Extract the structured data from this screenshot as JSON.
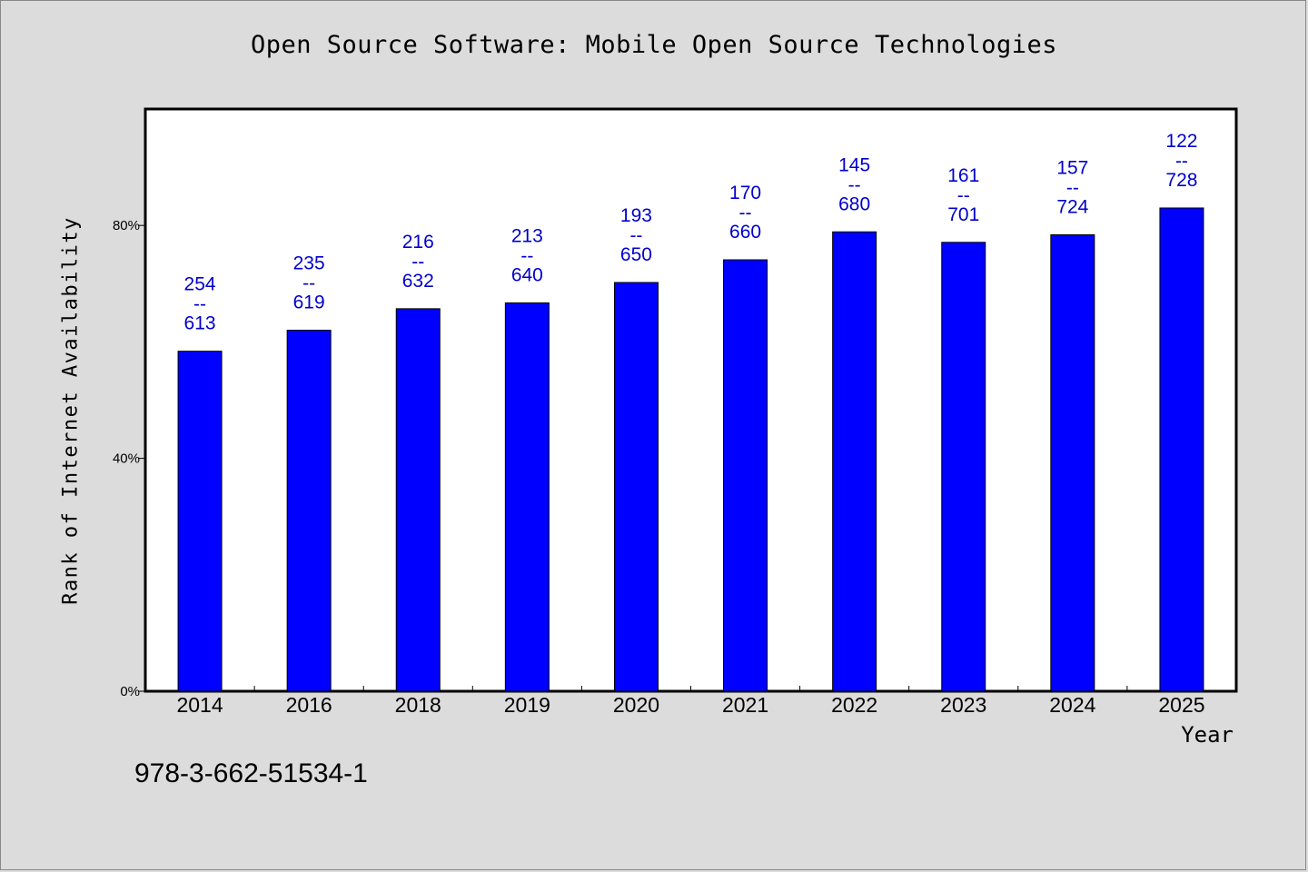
{
  "title": "Open Source Software: Mobile Open Source Technologies",
  "footer_text": "978-3-662-51534-1",
  "colors": {
    "background": "#dcdcdc",
    "plot_area": "#ffffff",
    "bar": "#0000ff",
    "label": "#0000cc"
  },
  "chart_data": {
    "type": "bar",
    "title": "Open Source Software: Mobile Open Source Technologies",
    "xlabel": "Year",
    "ylabel": "Rank of Internet Availability",
    "categories": [
      "2014",
      "2016",
      "2018",
      "2019",
      "2020",
      "2021",
      "2022",
      "2023",
      "2024",
      "2025"
    ],
    "series": [
      {
        "values": [
          58.4,
          62.0,
          65.7,
          66.7,
          70.2,
          74.1,
          78.9,
          77.1,
          78.4,
          83.0
        ]
      }
    ],
    "data_labels": [
      {
        "top": "254",
        "sep": "--",
        "bottom": "613"
      },
      {
        "top": "235",
        "sep": "--",
        "bottom": "619"
      },
      {
        "top": "216",
        "sep": "--",
        "bottom": "632"
      },
      {
        "top": "213",
        "sep": "--",
        "bottom": "640"
      },
      {
        "top": "193",
        "sep": "--",
        "bottom": "650"
      },
      {
        "top": "170",
        "sep": "--",
        "bottom": "660"
      },
      {
        "top": "145",
        "sep": "--",
        "bottom": "680"
      },
      {
        "top": "161",
        "sep": "--",
        "bottom": "701"
      },
      {
        "top": "157",
        "sep": "--",
        "bottom": "724"
      },
      {
        "top": "122",
        "sep": "--",
        "bottom": "728"
      }
    ],
    "ylim": [
      0,
      100
    ],
    "yticks": [
      0,
      40,
      80
    ],
    "ytick_labels": [
      "0%",
      "40%",
      "80%"
    ],
    "grid": false,
    "legend": "none"
  }
}
